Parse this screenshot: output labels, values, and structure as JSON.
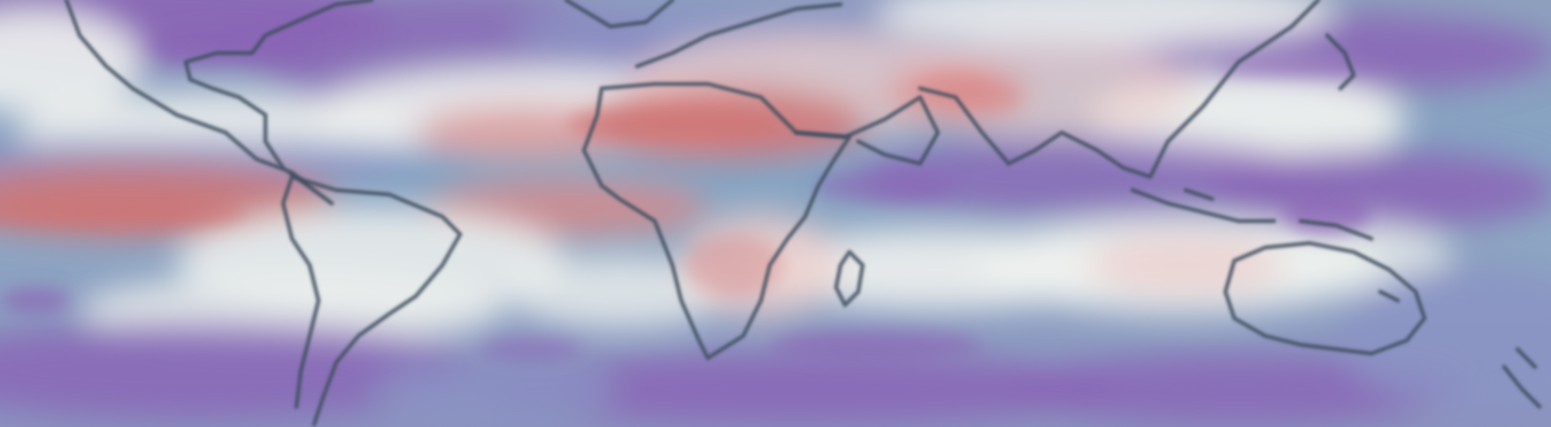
{
  "map": {
    "kind": "global-field-map",
    "projection": "equirectangular",
    "colormap": [
      "#7e5fb0",
      "#8a86c2",
      "#83aac5",
      "#eef2ee",
      "#f0cccc",
      "#cf7777"
    ],
    "colors": {
      "background": "#8c9fb4",
      "strong_low": "#8a64b6",
      "low": "#8b94c4",
      "transition": "#79a6c4",
      "neutral": "#eef1ee",
      "light_high": "#edcfcd",
      "high": "#d88a8a",
      "strong_high": "#cf7474",
      "coastline": "#3f4e5f"
    }
  }
}
